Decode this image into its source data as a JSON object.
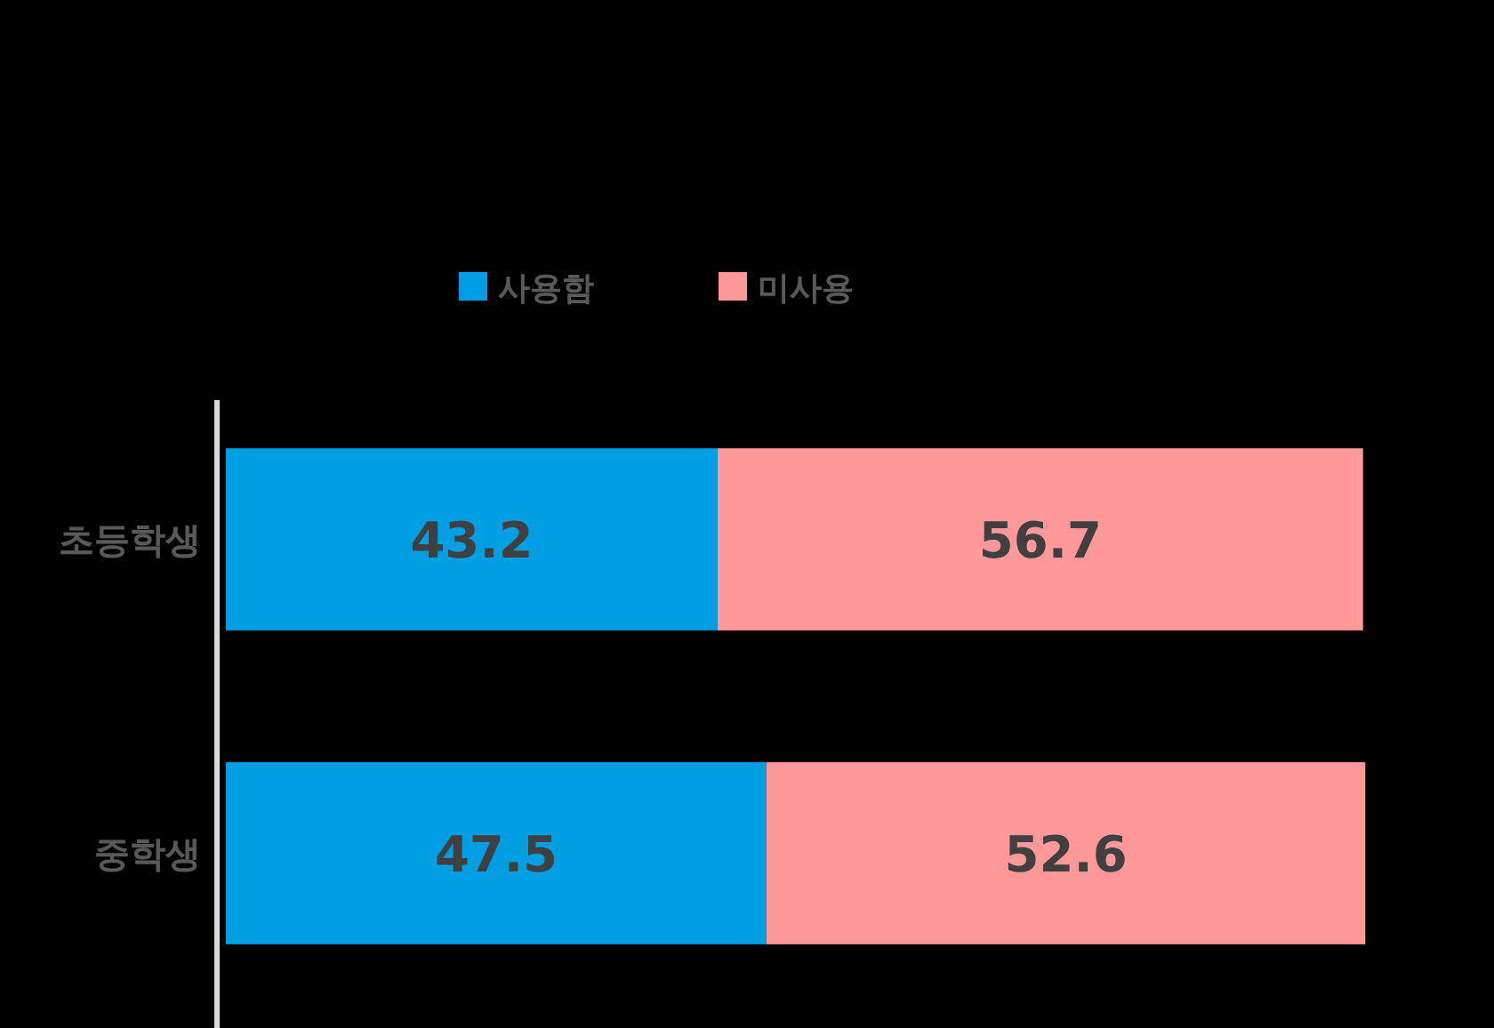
{
  "chart_data": {
    "type": "bar",
    "orientation": "horizontal",
    "stacked": true,
    "data_labels": true,
    "legend": "top",
    "categories": [
      "초등학생",
      "중학생"
    ],
    "series": [
      {
        "name": "사용함",
        "color": "#009fe3",
        "values": [
          43.2,
          47.5
        ]
      },
      {
        "name": "미사용",
        "color": "#ff9999",
        "values": [
          56.7,
          52.6
        ]
      }
    ]
  }
}
